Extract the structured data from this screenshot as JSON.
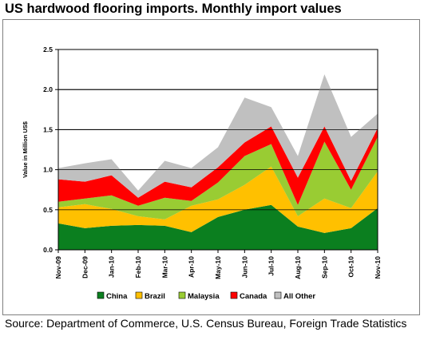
{
  "title": "US hardwood flooring imports. Monthly import values",
  "source": "Source: Department of Commerce, U.S. Census Bureau, Foreign Trade Statistics",
  "colors": {
    "China": "#0b7f1f",
    "Brazil": "#ffc000",
    "Malaysia": "#99cc33",
    "Canada": "#ff0000",
    "All Other": "#c0c0c0"
  },
  "chart_data": {
    "type": "area",
    "stacked": true,
    "title": "US hardwood flooring imports. Monthly import values",
    "ylabel": "Value in Million US$",
    "xlabel": "",
    "ylim": [
      0,
      2.5
    ],
    "yticks": [
      "0.0",
      "0.5",
      "1.0",
      "1.5",
      "2.0",
      "2.5"
    ],
    "grid": true,
    "legend_position": "bottom",
    "categories": [
      "Nov-09",
      "Dec-09",
      "Jan-10",
      "Feb-10",
      "Mar-10",
      "Apr-10",
      "May-10",
      "Jun-10",
      "Jul-10",
      "Aug-10",
      "Sep-10",
      "Oct-10",
      "Nov-10"
    ],
    "series": [
      {
        "name": "China",
        "values": [
          0.33,
          0.27,
          0.3,
          0.31,
          0.3,
          0.22,
          0.41,
          0.5,
          0.56,
          0.29,
          0.21,
          0.27,
          0.52
        ]
      },
      {
        "name": "Brazil",
        "values": [
          0.2,
          0.3,
          0.21,
          0.11,
          0.08,
          0.33,
          0.22,
          0.31,
          0.48,
          0.13,
          0.43,
          0.25,
          0.46
        ]
      },
      {
        "name": "Malaysia",
        "values": [
          0.07,
          0.07,
          0.17,
          0.13,
          0.27,
          0.06,
          0.21,
          0.36,
          0.28,
          0.14,
          0.71,
          0.23,
          0.43
        ]
      },
      {
        "name": "Canada",
        "values": [
          0.28,
          0.21,
          0.25,
          0.1,
          0.2,
          0.17,
          0.19,
          0.17,
          0.22,
          0.34,
          0.19,
          0.11,
          0.11
        ]
      },
      {
        "name": "All Other",
        "values": [
          0.14,
          0.23,
          0.2,
          0.09,
          0.26,
          0.24,
          0.25,
          0.56,
          0.24,
          0.27,
          0.65,
          0.55,
          0.18
        ]
      }
    ]
  }
}
